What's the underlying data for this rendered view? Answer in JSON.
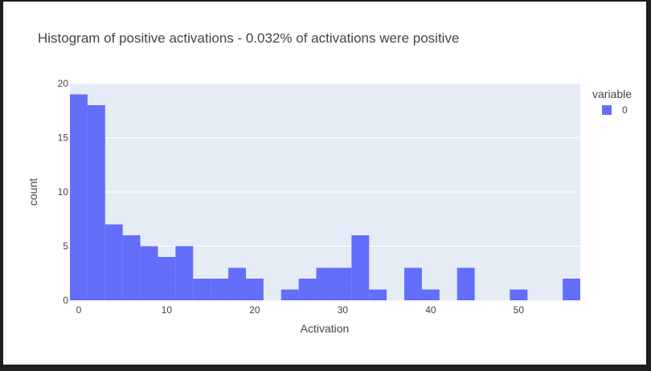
{
  "chart_data": {
    "type": "bar",
    "title": "Histogram of positive activations - 0.032% of activations were positive",
    "xlabel": "Activation",
    "ylabel": "count",
    "xlim": [
      -1,
      57
    ],
    "ylim": [
      0,
      20
    ],
    "x_ticks": [
      "0",
      "10",
      "20",
      "30",
      "40",
      "50"
    ],
    "y_ticks": [
      "0",
      "5",
      "10",
      "15",
      "20"
    ],
    "bin_width": 2,
    "bins_start": [
      -1,
      1,
      3,
      5,
      7,
      9,
      11,
      13,
      15,
      17,
      19,
      21,
      23,
      25,
      27,
      29,
      31,
      33,
      35,
      37,
      39,
      41,
      43,
      45,
      47,
      49,
      51,
      53,
      55
    ],
    "series": [
      {
        "name": "0",
        "values": [
          19,
          18,
          7,
          6,
          5,
          4,
          5,
          2,
          2,
          3,
          2,
          0,
          1,
          2,
          3,
          3,
          6,
          1,
          0,
          3,
          1,
          0,
          3,
          0,
          0,
          1,
          0,
          0,
          2
        ]
      }
    ],
    "legend": {
      "title": "variable",
      "placement": "top-right"
    },
    "grid": true,
    "colors": {
      "bar": "#636efa",
      "plot_bg": "#e5ecf6",
      "grid": "#ffffff"
    }
  }
}
